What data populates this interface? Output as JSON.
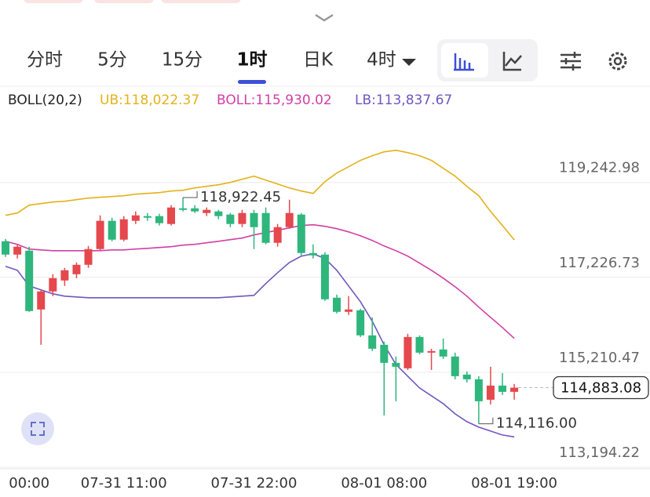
{
  "tabs": [
    "分时",
    "5分",
    "15分",
    "1时",
    "日K",
    "4时"
  ],
  "selected_tab": 3,
  "chart_data": {
    "type": "candlestick",
    "indicator": "BOLL(20,2)",
    "up_color": "#e5484d",
    "down_color": "#2eb67d",
    "categories": [
      null,
      null,
      "00:00",
      null,
      null,
      null,
      null,
      null,
      null,
      null,
      "07-31 11:00",
      null,
      null,
      null,
      null,
      null,
      null,
      null,
      null,
      null,
      null,
      "07-31 22:00",
      null,
      null,
      null,
      null,
      null,
      null,
      null,
      null,
      null,
      null,
      "08-01 08:00",
      null,
      null,
      null,
      null,
      null,
      null,
      null,
      null,
      null,
      null,
      "08-01 19:00"
    ],
    "open": [
      117993,
      117710,
      117793,
      116544,
      116927,
      117160,
      117293,
      117493,
      117827,
      118427,
      118027,
      118427,
      118527,
      118527,
      118360,
      118693,
      118693,
      118593,
      118627,
      118560,
      118360,
      118593,
      118593,
      117960,
      118293,
      118560,
      117743,
      117710,
      116794,
      116494,
      116527,
      115994,
      115794,
      115410,
      115294,
      115960,
      115627,
      115694,
      115544,
      115161,
      115061,
      114627,
      114927,
      114794
    ],
    "high": [
      118043,
      117927,
      117877,
      116960,
      117293,
      117427,
      117543,
      117893,
      118543,
      118493,
      118527,
      118627,
      118593,
      118577,
      118760,
      118922.45,
      118760,
      118710,
      118660,
      118593,
      118660,
      118660,
      118710,
      118360,
      118876,
      118593,
      117927,
      117760,
      116860,
      116827,
      116560,
      116377,
      115860,
      115544,
      116027,
      115994,
      115710,
      115927,
      115627,
      115227,
      115127,
      115327,
      115194,
      114961
    ],
    "low": [
      117660,
      117627,
      116494,
      115794,
      116827,
      117043,
      117210,
      117427,
      117793,
      117993,
      117993,
      118360,
      118427,
      118327,
      118327,
      118627,
      118593,
      118527,
      118460,
      118293,
      118293,
      117827,
      117927,
      117877,
      118260,
      117693,
      117627,
      116727,
      116460,
      116427,
      115960,
      115660,
      114294,
      114594,
      115260,
      115594,
      115260,
      115494,
      115061,
      114994,
      114116.0,
      114527,
      114727,
      114627
    ],
    "close": [
      117710,
      117877,
      116510,
      116927,
      117210,
      117377,
      117493,
      117827,
      118427,
      118027,
      118460,
      118543,
      118493,
      118377,
      118710,
      118660,
      118627,
      118660,
      118527,
      118360,
      118593,
      118293,
      117960,
      118293,
      118593,
      117743,
      117693,
      116760,
      116494,
      116544,
      115994,
      115710,
      115410,
      115327,
      115960,
      115627,
      115660,
      115544,
      115127,
      115061,
      114594,
      114927,
      114794,
      114883.08
    ],
    "series": [
      {
        "name": "UB",
        "label": "UB:118,022.37",
        "color": "#e3b21b",
        "values": [
          118543,
          118593,
          118760,
          118793,
          118826,
          118843,
          118876,
          118910,
          118926,
          118943,
          118960,
          118993,
          119010,
          119026,
          119060,
          119076,
          119126,
          119160,
          119193,
          119243,
          119310,
          119376,
          119293,
          119210,
          119126,
          119060,
          119010,
          119260,
          119443,
          119576,
          119710,
          119810,
          119893,
          119926,
          119876,
          119810,
          119710,
          119543,
          119376,
          119160,
          118960,
          118627,
          118327,
          118022.37
        ]
      },
      {
        "name": "BOLL",
        "label": "BOLL:115,930.02",
        "color": "#d23fa6",
        "values": [
          117993,
          117927,
          117827,
          117810,
          117793,
          117793,
          117793,
          117793,
          117793,
          117810,
          117810,
          117827,
          117843,
          117860,
          117877,
          117910,
          117927,
          117960,
          117993,
          118027,
          118060,
          118127,
          118177,
          118227,
          118277,
          118327,
          118343,
          118310,
          118260,
          118193,
          118110,
          118010,
          117893,
          117793,
          117677,
          117527,
          117377,
          117210,
          117027,
          116827,
          116594,
          116377,
          116160,
          115930.02
        ]
      },
      {
        "name": "LB",
        "label": "LB:113,837.67",
        "color": "#6f57bf",
        "values": [
          117460,
          117377,
          117043,
          116960,
          116877,
          116827,
          116810,
          116794,
          116794,
          116794,
          116794,
          116794,
          116794,
          116794,
          116794,
          116794,
          116794,
          116794,
          116794,
          116810,
          116827,
          116844,
          117094,
          117327,
          117543,
          117677,
          117727,
          117627,
          117377,
          117043,
          116710,
          116294,
          115794,
          115377,
          115127,
          114877,
          114711,
          114544,
          114327,
          114161,
          114044,
          113961,
          113878,
          113837.67
        ]
      }
    ],
    "high_label": "118,922.45",
    "low_label": "114,116.00",
    "last_label": "114,883.08",
    "ylim": [
      113160,
      120620
    ],
    "yticks": [
      {
        "value": 119242.98,
        "label": "119,242.98"
      },
      {
        "value": 117226.73,
        "label": "117,226.73"
      },
      {
        "value": 115210.47,
        "label": "115,210.47"
      },
      {
        "value": 113194.22,
        "label": "113,194.22"
      }
    ],
    "grid": true
  }
}
